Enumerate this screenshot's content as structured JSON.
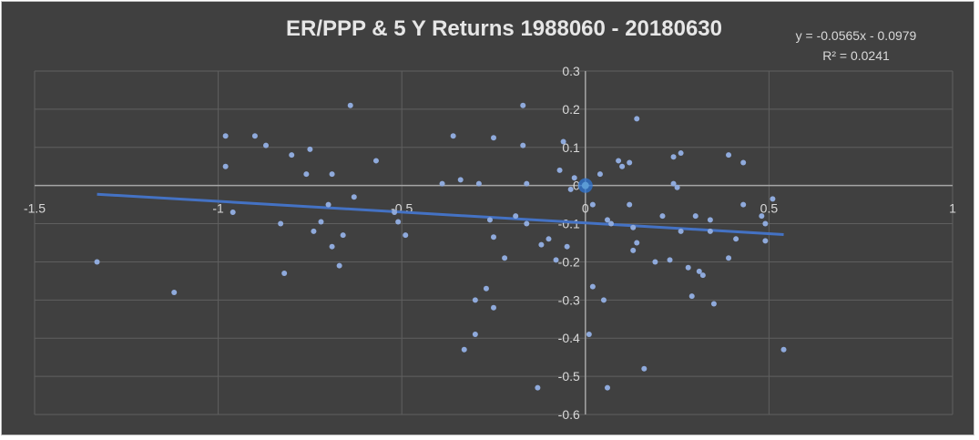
{
  "chart_data": {
    "type": "scatter",
    "title": "ER/PPP  & 5 Y Returns 1988060 - 20180630",
    "xlabel": "",
    "ylabel": "",
    "xlim": [
      -1.5,
      1
    ],
    "ylim": [
      -0.6,
      0.3
    ],
    "x_ticks": [
      "-1.5",
      "-1",
      "-0.5",
      "0",
      "0.5",
      "1"
    ],
    "y_ticks": [
      "0.3",
      "0.2",
      "0.1",
      "0",
      "-0.1",
      "-0.2",
      "-0.3",
      "-0.4",
      "-0.5",
      "-0.6"
    ],
    "grid": true,
    "legend": "none",
    "trendline": {
      "type": "linear",
      "slope": -0.0565,
      "intercept": -0.0979,
      "x_range": [
        -1.33,
        0.54
      ],
      "equation_label": "y = -0.0565x - 0.0979",
      "r2_label": "R² = 0.0241"
    },
    "colors": {
      "background": "#404040",
      "point": "#8faadc",
      "highlight_point": "#2e75d6",
      "trendline": "#4472c4",
      "gridline": "#5f5f5f",
      "axis": "#a6a6a6",
      "text": "#d9d9d9"
    },
    "highlight": {
      "x": 0,
      "y": 0
    },
    "series": [
      {
        "points": [
          [
            -1.33,
            -0.2
          ],
          [
            -1.12,
            -0.28
          ],
          [
            -0.98,
            0.13
          ],
          [
            -0.98,
            0.05
          ],
          [
            -0.96,
            -0.07
          ],
          [
            -0.9,
            0.13
          ],
          [
            -0.87,
            0.105
          ],
          [
            -0.83,
            -0.1
          ],
          [
            -0.82,
            -0.23
          ],
          [
            -0.8,
            0.08
          ],
          [
            -0.76,
            0.03
          ],
          [
            -0.75,
            0.095
          ],
          [
            -0.74,
            -0.12
          ],
          [
            -0.72,
            -0.095
          ],
          [
            -0.7,
            -0.05
          ],
          [
            -0.69,
            -0.16
          ],
          [
            -0.69,
            0.03
          ],
          [
            -0.67,
            -0.21
          ],
          [
            -0.66,
            -0.13
          ],
          [
            -0.64,
            0.21
          ],
          [
            -0.63,
            -0.03
          ],
          [
            -0.57,
            0.065
          ],
          [
            -0.52,
            -0.07
          ],
          [
            -0.51,
            -0.095
          ],
          [
            -0.49,
            -0.13
          ],
          [
            -0.39,
            0.005
          ],
          [
            -0.36,
            0.13
          ],
          [
            -0.34,
            0.015
          ],
          [
            -0.33,
            -0.43
          ],
          [
            -0.3,
            -0.39
          ],
          [
            -0.3,
            -0.3
          ],
          [
            -0.29,
            0.005
          ],
          [
            -0.27,
            -0.27
          ],
          [
            -0.26,
            -0.09
          ],
          [
            -0.25,
            -0.32
          ],
          [
            -0.25,
            -0.135
          ],
          [
            -0.25,
            0.125
          ],
          [
            -0.22,
            -0.19
          ],
          [
            -0.19,
            -0.08
          ],
          [
            -0.17,
            0.21
          ],
          [
            -0.17,
            0.105
          ],
          [
            -0.16,
            0.005
          ],
          [
            -0.16,
            -0.1
          ],
          [
            -0.13,
            -0.53
          ],
          [
            -0.12,
            -0.155
          ],
          [
            -0.1,
            -0.14
          ],
          [
            -0.08,
            -0.195
          ],
          [
            -0.07,
            0.04
          ],
          [
            -0.06,
            0.115
          ],
          [
            -0.05,
            -0.16
          ],
          [
            -0.04,
            -0.01
          ],
          [
            -0.03,
            0.02
          ],
          [
            0.01,
            -0.39
          ],
          [
            0.02,
            -0.265
          ],
          [
            0.02,
            -0.05
          ],
          [
            0.04,
            0.03
          ],
          [
            0.05,
            -0.3
          ],
          [
            0.06,
            -0.53
          ],
          [
            0.06,
            -0.09
          ],
          [
            0.07,
            -0.1
          ],
          [
            0.09,
            0.065
          ],
          [
            0.1,
            0.05
          ],
          [
            0.12,
            0.06
          ],
          [
            0.12,
            -0.05
          ],
          [
            0.13,
            -0.11
          ],
          [
            0.13,
            -0.17
          ],
          [
            0.14,
            -0.15
          ],
          [
            0.14,
            0.175
          ],
          [
            0.16,
            -0.48
          ],
          [
            0.19,
            -0.2
          ],
          [
            0.21,
            -0.08
          ],
          [
            0.23,
            -0.195
          ],
          [
            0.24,
            0.075
          ],
          [
            0.24,
            0.005
          ],
          [
            0.25,
            -0.005
          ],
          [
            0.26,
            0.085
          ],
          [
            0.26,
            -0.12
          ],
          [
            0.28,
            -0.215
          ],
          [
            0.29,
            -0.29
          ],
          [
            0.3,
            -0.08
          ],
          [
            0.31,
            -0.225
          ],
          [
            0.32,
            -0.235
          ],
          [
            0.34,
            -0.09
          ],
          [
            0.34,
            -0.12
          ],
          [
            0.35,
            -0.31
          ],
          [
            0.39,
            0.08
          ],
          [
            0.39,
            -0.19
          ],
          [
            0.41,
            -0.14
          ],
          [
            0.43,
            -0.05
          ],
          [
            0.43,
            0.06
          ],
          [
            0.48,
            -0.08
          ],
          [
            0.49,
            -0.1
          ],
          [
            0.49,
            -0.145
          ],
          [
            0.51,
            -0.035
          ],
          [
            0.54,
            -0.43
          ]
        ]
      }
    ]
  }
}
